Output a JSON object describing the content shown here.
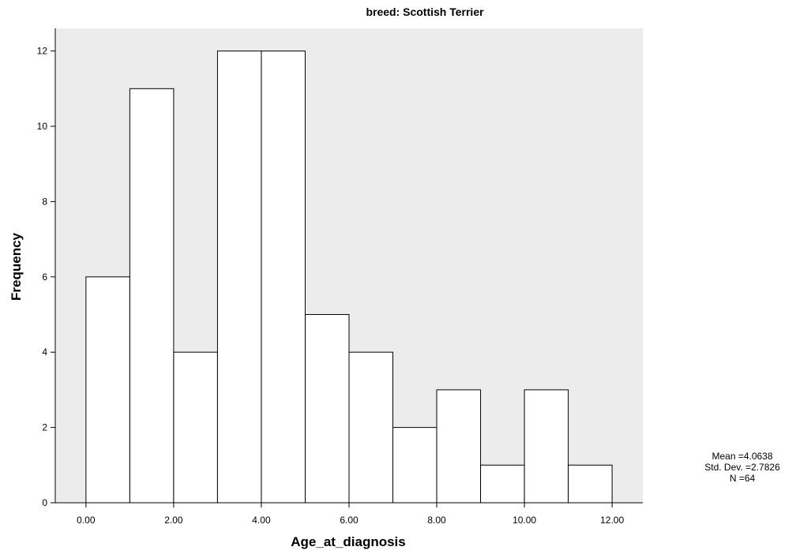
{
  "chart_data": {
    "type": "bar",
    "title": "breed: Scottish Terrier",
    "xlabel": "Age_at_diagnosis",
    "ylabel": "Frequency",
    "bin_edges": [
      0,
      1,
      2,
      3,
      4,
      5,
      6,
      7,
      8,
      9,
      10,
      11,
      12
    ],
    "values": [
      6,
      11,
      4,
      12,
      12,
      5,
      4,
      2,
      3,
      1,
      3,
      1
    ],
    "xlim": [
      -0.7,
      12.7
    ],
    "ylim": [
      0,
      12.6
    ],
    "x_ticks": [
      0,
      2,
      4,
      6,
      8,
      10,
      12
    ],
    "x_tick_labels": [
      "0.00",
      "2.00",
      "4.00",
      "6.00",
      "8.00",
      "10.00",
      "12.00"
    ],
    "y_ticks": [
      0,
      2,
      4,
      6,
      8,
      10,
      12
    ],
    "y_tick_labels": [
      "0",
      "2",
      "4",
      "6",
      "8",
      "10",
      "12"
    ],
    "plot_background": "#ececec",
    "bar_fill": "#ffffff",
    "bar_stroke": "#000000",
    "grid": false,
    "stats": {
      "mean": "Mean =4.0638",
      "std_dev": "Std. Dev. =2.7826",
      "n": "N =64"
    }
  }
}
